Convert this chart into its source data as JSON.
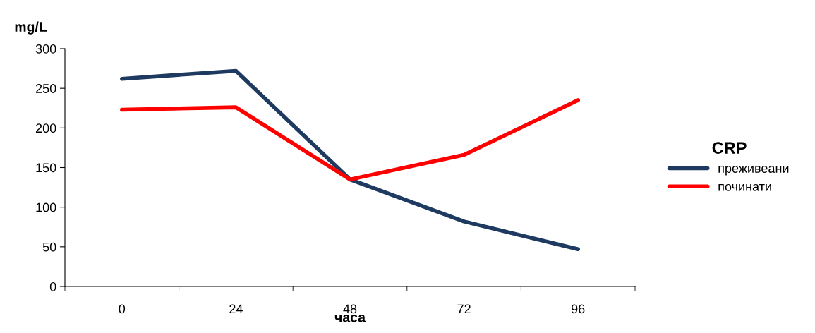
{
  "chart_data": {
    "type": "line",
    "ylabel": "mg/L",
    "xlabel": "часа",
    "legend_title": "CRP",
    "categories": [
      "0",
      "24",
      "48",
      "72",
      "96"
    ],
    "series": [
      {
        "name": "преживеани",
        "color": "#1f3a60",
        "values": [
          262,
          272,
          135,
          82,
          47
        ]
      },
      {
        "name": "починати",
        "color": "#ff0000",
        "values": [
          223,
          226,
          135,
          166,
          235
        ]
      }
    ],
    "ylim": [
      0,
      300
    ],
    "yticks": [
      0,
      50,
      100,
      150,
      200,
      250,
      300
    ],
    "grid": false,
    "legend": "right",
    "marker": "none",
    "line_style": "solid"
  }
}
